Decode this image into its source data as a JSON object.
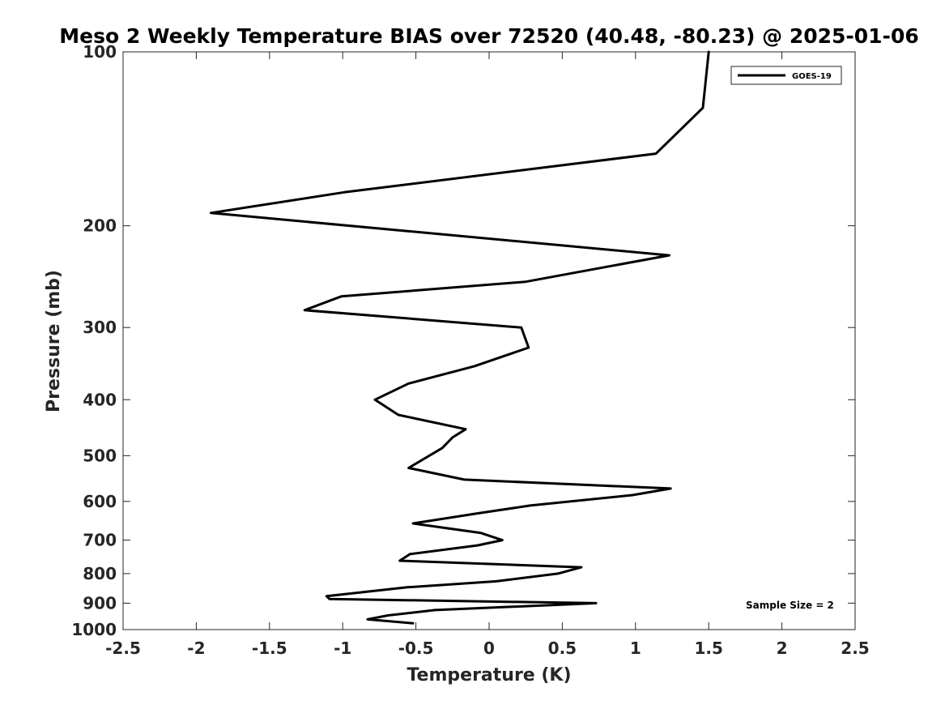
{
  "chart_data": {
    "type": "line",
    "title": "Meso 2 Weekly Temperature BIAS over 72520 (40.48, -80.23) @ 2025-01-06",
    "xlabel": "Temperature (K)",
    "ylabel": "Pressure (mb)",
    "xlim": [
      -2.5,
      2.5
    ],
    "ylim": [
      100,
      1000
    ],
    "yscale": "log",
    "yreversed": true,
    "xticks": [
      -2.5,
      -2,
      -1.5,
      -1,
      -0.5,
      0,
      0.5,
      1,
      1.5,
      2,
      2.5
    ],
    "xtick_labels": [
      "-2.5",
      "-2",
      "-1.5",
      "-1",
      "-0.5",
      "0",
      "0.5",
      "1",
      "1.5",
      "2",
      "2.5"
    ],
    "yticks": [
      100,
      200,
      300,
      400,
      500,
      600,
      700,
      800,
      900,
      1000
    ],
    "ytick_labels": [
      "100",
      "200",
      "300",
      "400",
      "500",
      "600",
      "700",
      "800",
      "900",
      "1000"
    ],
    "grid": false,
    "legend_position": "top-right",
    "annotation": "Sample Size = 2",
    "series": [
      {
        "name": "GOES-19",
        "color": "#000000",
        "points": [
          {
            "x": 1.5,
            "p": 100
          },
          {
            "x": 1.46,
            "p": 125
          },
          {
            "x": 1.14,
            "p": 150
          },
          {
            "x": -0.99,
            "p": 175
          },
          {
            "x": -1.9,
            "p": 190
          },
          {
            "x": 1.23,
            "p": 225
          },
          {
            "x": 0.25,
            "p": 250
          },
          {
            "x": -1.01,
            "p": 265
          },
          {
            "x": -1.26,
            "p": 280
          },
          {
            "x": 0.22,
            "p": 300
          },
          {
            "x": 0.27,
            "p": 325
          },
          {
            "x": -0.1,
            "p": 350
          },
          {
            "x": -0.55,
            "p": 375
          },
          {
            "x": -0.78,
            "p": 400
          },
          {
            "x": -0.62,
            "p": 425
          },
          {
            "x": -0.16,
            "p": 450
          },
          {
            "x": -0.25,
            "p": 465
          },
          {
            "x": -0.32,
            "p": 485
          },
          {
            "x": -0.55,
            "p": 525
          },
          {
            "x": -0.17,
            "p": 550
          },
          {
            "x": 1.24,
            "p": 570
          },
          {
            "x": 0.98,
            "p": 585
          },
          {
            "x": 0.28,
            "p": 610
          },
          {
            "x": -0.09,
            "p": 630
          },
          {
            "x": -0.52,
            "p": 655
          },
          {
            "x": -0.06,
            "p": 680
          },
          {
            "x": 0.09,
            "p": 700
          },
          {
            "x": -0.08,
            "p": 715
          },
          {
            "x": -0.54,
            "p": 740
          },
          {
            "x": -0.61,
            "p": 760
          },
          {
            "x": 0.63,
            "p": 780
          },
          {
            "x": 0.47,
            "p": 800
          },
          {
            "x": 0.05,
            "p": 825
          },
          {
            "x": -0.56,
            "p": 845
          },
          {
            "x": -1.11,
            "p": 875
          },
          {
            "x": -1.09,
            "p": 885
          },
          {
            "x": 0.73,
            "p": 900
          },
          {
            "x": -0.37,
            "p": 925
          },
          {
            "x": -0.69,
            "p": 945
          },
          {
            "x": -0.83,
            "p": 960
          },
          {
            "x": -0.52,
            "p": 975
          }
        ]
      }
    ]
  }
}
